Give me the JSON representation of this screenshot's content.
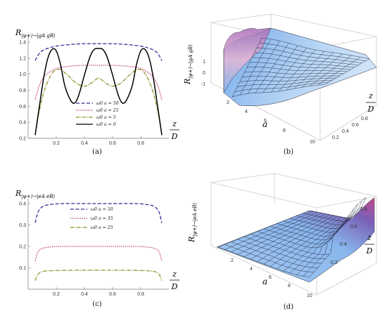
{
  "panels": [
    {
      "caption": "(a)",
      "ylabel_main": "R",
      "ylabel_sub": "|ψ+⟩→|gA gB⟩",
      "xlabel_num": "z",
      "xlabel_den": "D"
    },
    {
      "caption": "(b)",
      "zlabel_main": "R",
      "zlabel_sub": "|ψ+⟩→|gA gB⟩",
      "xlabel": "a",
      "ylabel_num": "z",
      "ylabel_den": "D",
      "zticks": [
        "1",
        "0",
        "-1"
      ],
      "aticks": [
        "2",
        "4",
        "6",
        "8",
        "10"
      ],
      "zdticks": [
        "0.8",
        "0.6",
        "0.4",
        "0.2"
      ]
    },
    {
      "caption": "(c)",
      "ylabel_main": "R",
      "ylabel_sub": "|ψ+⟩→|eA eB⟩",
      "xlabel_num": "z",
      "xlabel_den": "D"
    },
    {
      "caption": "(d)",
      "zlabel_main": "R",
      "zlabel_sub": "|ψ+⟩→|eA eB⟩",
      "xlabel": "a",
      "ylabel_num": "z",
      "ylabel_den": "D",
      "aticks": [
        "2",
        "4",
        "6",
        "8",
        "10"
      ],
      "zdticks": [
        "0.8",
        "0.6",
        "0.4",
        "0.2"
      ]
    }
  ],
  "chart_data": [
    {
      "type": "line",
      "panel": "a",
      "title": "",
      "ylabel": "R|ψ+⟩→|gA gB⟩",
      "xlabel": "z/D",
      "xlim": [
        0,
        1
      ],
      "ylim": [
        0.2,
        1.4
      ],
      "xticks": [
        "0.2",
        "0.4",
        "0.6",
        "0.8"
      ],
      "yticks": [
        "0.2",
        "0.4",
        "0.6",
        "0.8",
        "1.0",
        "1.2",
        "1.4"
      ],
      "legend_position": "lower-center",
      "series": [
        {
          "name": "ω0 a = 50",
          "color": "#2c2a9a",
          "dash": "5,2.5",
          "x": [
            0.05,
            0.08,
            0.12,
            0.2,
            0.3,
            0.4,
            0.5,
            0.6,
            0.7,
            0.8,
            0.88,
            0.92,
            0.95
          ],
          "y": [
            1.17,
            1.26,
            1.31,
            1.35,
            1.37,
            1.38,
            1.38,
            1.38,
            1.37,
            1.35,
            1.31,
            1.26,
            1.17
          ]
        },
        {
          "name": "ω0 a = 25",
          "color": "#b0206a",
          "dash": "1.2,1.6",
          "x": [
            0.05,
            0.08,
            0.12,
            0.2,
            0.3,
            0.4,
            0.5,
            0.6,
            0.7,
            0.8,
            0.88,
            0.92,
            0.95
          ],
          "y": [
            0.68,
            0.86,
            0.98,
            1.07,
            1.1,
            1.11,
            1.11,
            1.11,
            1.1,
            1.07,
            0.98,
            0.86,
            0.68
          ]
        },
        {
          "name": "ω0 a = 5",
          "color": "#8a8a1c",
          "dash": "5,1.5,1.2,1.5",
          "x": [
            0.05,
            0.08,
            0.12,
            0.17,
            0.22,
            0.28,
            0.34,
            0.4,
            0.45,
            0.5,
            0.55,
            0.6,
            0.66,
            0.72,
            0.78,
            0.83,
            0.88,
            0.92,
            0.95
          ],
          "y": [
            0.24,
            0.55,
            0.82,
            1.01,
            1.06,
            0.99,
            0.89,
            0.85,
            0.89,
            0.95,
            0.89,
            0.85,
            0.89,
            0.99,
            1.06,
            1.01,
            0.82,
            0.55,
            0.24
          ]
        },
        {
          "name": "ω0 a = 0",
          "color": "#000000",
          "dash": "",
          "x": [
            0.05,
            0.08,
            0.11,
            0.14,
            0.17,
            0.2,
            0.23,
            0.26,
            0.3,
            0.33,
            0.36,
            0.4,
            0.44,
            0.47,
            0.5,
            0.53,
            0.56,
            0.6,
            0.64,
            0.67,
            0.7,
            0.74,
            0.77,
            0.8,
            0.83,
            0.86,
            0.89,
            0.92,
            0.95
          ],
          "y": [
            0.24,
            0.6,
            0.95,
            1.2,
            1.31,
            1.29,
            1.12,
            0.86,
            0.68,
            0.64,
            0.74,
            0.99,
            1.22,
            1.31,
            1.32,
            1.31,
            1.22,
            0.99,
            0.74,
            0.64,
            0.68,
            0.86,
            1.12,
            1.29,
            1.31,
            1.2,
            0.95,
            0.6,
            0.24
          ]
        }
      ]
    },
    {
      "type": "line",
      "panel": "c",
      "title": "",
      "ylabel": "R|ψ+⟩→|eA eB⟩",
      "xlabel": "z/D",
      "xlim": [
        0,
        1
      ],
      "ylim": [
        0,
        0.4
      ],
      "xticks": [
        "0.2",
        "0.4",
        "0.6",
        "0.8"
      ],
      "yticks": [
        "0.1",
        "0.2",
        "0.3",
        "0.4"
      ],
      "legend_position": "top-center",
      "series": [
        {
          "name": "ω0 a = 50",
          "color": "#2c2a9a",
          "dash": "5,2.5",
          "x": [
            0.05,
            0.07,
            0.1,
            0.15,
            0.25,
            0.4,
            0.5,
            0.6,
            0.75,
            0.85,
            0.9,
            0.93,
            0.95
          ],
          "y": [
            0.31,
            0.36,
            0.385,
            0.395,
            0.4,
            0.4,
            0.4,
            0.4,
            0.4,
            0.395,
            0.385,
            0.36,
            0.31
          ]
        },
        {
          "name": "ω0 a = 35",
          "color": "#b0206a",
          "dash": "1.2,1.6",
          "x": [
            0.05,
            0.07,
            0.1,
            0.15,
            0.25,
            0.4,
            0.5,
            0.6,
            0.75,
            0.85,
            0.9,
            0.93,
            0.95
          ],
          "y": [
            0.13,
            0.175,
            0.19,
            0.197,
            0.2,
            0.2,
            0.2,
            0.2,
            0.2,
            0.197,
            0.19,
            0.175,
            0.13
          ]
        },
        {
          "name": "ω0 a = 25",
          "color": "#8a8a1c",
          "dash": "5,1.5,1.2,1.5",
          "x": [
            0.05,
            0.07,
            0.1,
            0.15,
            0.25,
            0.4,
            0.5,
            0.6,
            0.75,
            0.85,
            0.9,
            0.93,
            0.95
          ],
          "y": [
            0.04,
            0.07,
            0.082,
            0.086,
            0.088,
            0.089,
            0.089,
            0.089,
            0.088,
            0.086,
            0.082,
            0.07,
            0.04
          ]
        }
      ]
    }
  ]
}
